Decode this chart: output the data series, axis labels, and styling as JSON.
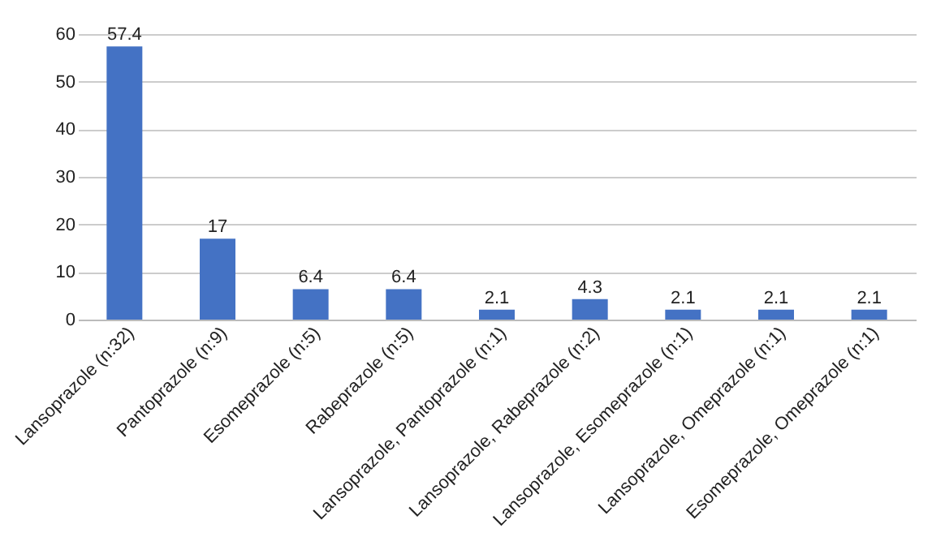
{
  "chart_data": {
    "type": "bar",
    "categories": [
      "Lansoprazole (n:32)",
      "Pantoprazole (n:9)",
      "Esomeprazole (n:5)",
      "Rabeprazole (n:5)",
      "Lansoprazole, Pantoprazole (n:1)",
      "Lansoprazole, Rabeprazole (n:2)",
      "Lansoprazole, Esomeprazole (n:1)",
      "Lansoprazole, Omeprazole (n:1)",
      "Esomeprazole, Omeprazole (n:1)"
    ],
    "values": [
      57.4,
      17,
      6.4,
      6.4,
      2.1,
      4.3,
      2.1,
      2.1,
      2.1
    ],
    "color": "#4472c4",
    "ylim": [
      0,
      60
    ],
    "yticks": [
      0,
      10,
      20,
      30,
      40,
      50,
      60
    ],
    "grid": "y",
    "data_labels": true
  }
}
